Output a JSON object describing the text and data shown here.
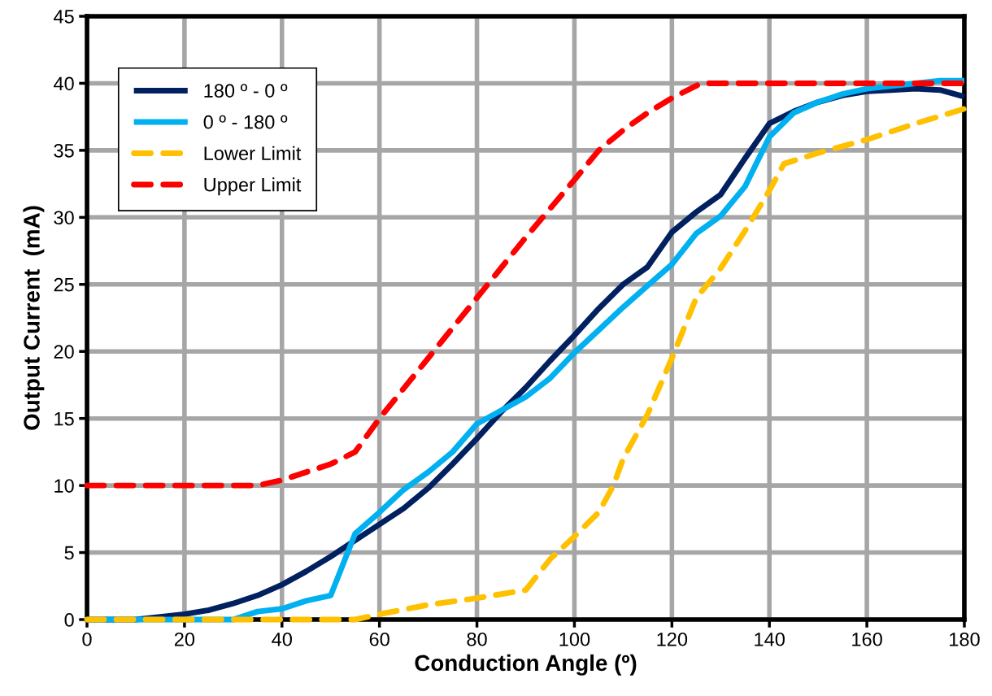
{
  "chart_data": {
    "type": "line",
    "xlabel": "Conduction Angle (º)",
    "ylabel": "Output Current  (mA)",
    "xlim": [
      0,
      180
    ],
    "xticks": [
      0,
      20,
      40,
      60,
      80,
      100,
      120,
      140,
      160,
      180
    ],
    "ylim": [
      0,
      45
    ],
    "yticks": [
      0,
      5,
      10,
      15,
      20,
      25,
      30,
      35,
      40,
      45
    ],
    "grid": true,
    "legend": "top left",
    "marker": "none",
    "series": [
      {
        "name": "180 º - 0 º",
        "color": "#002060",
        "line_style": "solid",
        "x": [
          0,
          5,
          10,
          15,
          20,
          25,
          30,
          35,
          40,
          45,
          50,
          55,
          60,
          65,
          70,
          75,
          80,
          85,
          90,
          95,
          100,
          105,
          110,
          115,
          120,
          125,
          130,
          135,
          140,
          145,
          150,
          155,
          160,
          165,
          170,
          175,
          180
        ],
        "values": [
          0,
          0,
          0,
          0.2,
          0.4,
          0.7,
          1.2,
          1.8,
          2.6,
          3.6,
          4.7,
          5.9,
          7.1,
          8.3,
          9.8,
          11.6,
          13.5,
          15.5,
          17.3,
          19.3,
          21.2,
          23.2,
          25.0,
          26.3,
          28.9,
          30.4,
          31.7,
          34.4,
          37.0,
          37.9,
          38.6,
          39.1,
          39.4,
          39.5,
          39.6,
          39.5,
          39.0
        ]
      },
      {
        "name": "0 º - 180 º",
        "color": "#00b0f0",
        "line_style": "solid",
        "x": [
          0,
          5,
          10,
          15,
          20,
          25,
          30,
          35,
          40,
          45,
          50,
          55,
          60,
          65,
          70,
          75,
          80,
          85,
          90,
          95,
          100,
          105,
          110,
          115,
          120,
          125,
          130,
          135,
          140,
          145,
          150,
          155,
          160,
          165,
          170,
          175,
          180
        ],
        "values": [
          0,
          0,
          0,
          0,
          0,
          0,
          0,
          0.6,
          0.8,
          1.4,
          1.8,
          6.4,
          8.0,
          9.7,
          11.0,
          12.5,
          14.6,
          15.6,
          16.6,
          18.0,
          19.9,
          21.6,
          23.3,
          24.9,
          26.5,
          28.8,
          30.1,
          32.3,
          36.0,
          37.8,
          38.6,
          39.2,
          39.6,
          39.8,
          40.0,
          40.2,
          40.2
        ]
      },
      {
        "name": "Lower Limit",
        "color": "#ffc000",
        "line_style": "dashed",
        "x": [
          0,
          55,
          60,
          70,
          80,
          90,
          95,
          100,
          105,
          108,
          110,
          115,
          120,
          125,
          130,
          135,
          140,
          143,
          150,
          160,
          170,
          180
        ],
        "values": [
          0,
          0,
          0.4,
          1.1,
          1.6,
          2.2,
          4.5,
          6.2,
          8.0,
          10.0,
          12.0,
          15.3,
          19.5,
          24.0,
          26.2,
          29.0,
          32.0,
          34.0,
          34.8,
          35.8,
          37.0,
          38.1
        ]
      },
      {
        "name": "Upper Limit",
        "color": "#ff0000",
        "line_style": "dashed",
        "x": [
          0,
          35,
          40,
          50,
          55,
          60,
          70,
          80,
          90,
          100,
          105,
          110,
          115,
          120,
          126,
          180
        ],
        "values": [
          10,
          10,
          10.4,
          11.6,
          12.5,
          15.0,
          19.5,
          24.0,
          28.5,
          32.8,
          35.0,
          36.5,
          37.8,
          38.9,
          40,
          40
        ]
      }
    ]
  }
}
